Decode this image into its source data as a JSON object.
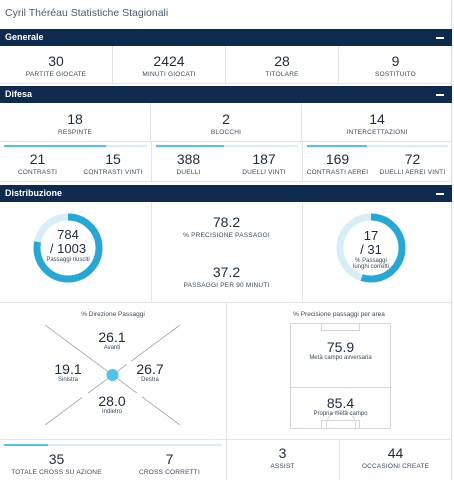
{
  "header": {
    "title": "Cyril Théréau Statistiche Stagionali"
  },
  "generale": {
    "title": "Generale",
    "stats": [
      {
        "value": "30",
        "label": "PARTITE GIOCATE"
      },
      {
        "value": "2424",
        "label": "MINUTI GIOCATI"
      },
      {
        "value": "28",
        "label": "TITOLARE"
      },
      {
        "value": "9",
        "label": "SOSTITUITO"
      }
    ]
  },
  "difesa": {
    "title": "Difesa",
    "top": [
      {
        "value": "18",
        "label": "RESPINTE"
      },
      {
        "value": "2",
        "label": "BLOCCHI"
      },
      {
        "value": "14",
        "label": "INTERCETTAZIONI"
      }
    ],
    "pairs": [
      {
        "a_value": "21",
        "a_label": "CONTRASTI",
        "b_value": "15",
        "b_label": "CONTRASTI VINTI",
        "fraction": 0.714
      },
      {
        "a_value": "388",
        "a_label": "DUELLI",
        "b_value": "187",
        "b_label": "DUELLI VINTI",
        "fraction": 0.482
      },
      {
        "a_value": "169",
        "a_label": "CONTRASTI AEREI",
        "b_value": "72",
        "b_label": "DUELLI AEREI VINTI",
        "fraction": 0.426
      }
    ]
  },
  "distribuzione": {
    "title": "Distribuzione",
    "passaggi": {
      "value": "784",
      "total": "/ 1003",
      "label": "Passaggi riusciti",
      "fraction": 0.78
    },
    "precisione": {
      "value": "78.2",
      "label": "% PRECISIONE PASSAGGI"
    },
    "per90": {
      "value": "37.2",
      "label": "PASSAGGI PER 90 MINUTI"
    },
    "lunghi": {
      "value": "17",
      "total": "/ 31",
      "label1": "% Passaggi",
      "label2": "lunghi corretti",
      "fraction": 0.548
    }
  },
  "direzione": {
    "title": "% Direzione Passaggi",
    "avanti": {
      "value": "26.1",
      "label": "Avanti"
    },
    "sinistra": {
      "value": "19.1",
      "label": "Sinistra"
    },
    "destra": {
      "value": "26.7",
      "label": "Destra"
    },
    "indietro": {
      "value": "28.0",
      "label": "Indietro"
    }
  },
  "precisione_area": {
    "title": "% Precisione passaggi per area",
    "avversaria": {
      "value": "75.9",
      "label": "Metà campo avversaria"
    },
    "propria": {
      "value": "85.4",
      "label": "Propria metà campo"
    }
  },
  "bottom": {
    "cross": {
      "value": "35",
      "label": "TOTALE CROSS SU AZIONE"
    },
    "cross_corretti": {
      "value": "7",
      "label": "CROSS CORRETTI"
    },
    "cross_fraction": 0.2,
    "assist": {
      "value": "3",
      "label": "ASSIST"
    },
    "occasioni": {
      "value": "44",
      "label": "OCCASIONI CREATE"
    }
  },
  "colors": {
    "header": "#0f2a4f",
    "accent": "#4fc3e8",
    "accent_dark": "#25a8d6",
    "track": "#d7eef7"
  }
}
